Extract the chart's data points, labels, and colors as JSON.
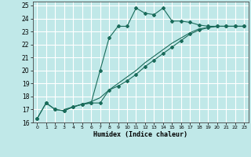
{
  "xlabel": "Humidex (Indice chaleur)",
  "bg_color": "#c0e8e8",
  "grid_color": "#ffffff",
  "line_color": "#1a6b5a",
  "xlim": [
    -0.5,
    23.5
  ],
  "ylim": [
    16,
    25.3
  ],
  "xticks": [
    0,
    1,
    2,
    3,
    4,
    5,
    6,
    7,
    8,
    9,
    10,
    11,
    12,
    13,
    14,
    15,
    16,
    17,
    18,
    19,
    20,
    21,
    22,
    23
  ],
  "yticks": [
    16,
    17,
    18,
    19,
    20,
    21,
    22,
    23,
    24,
    25
  ],
  "series1_x": [
    0,
    1,
    2,
    3,
    4,
    5,
    6,
    7,
    8,
    9,
    10,
    11,
    12,
    13,
    14,
    15,
    16,
    17,
    18,
    19,
    20,
    21,
    22,
    23
  ],
  "series1_y": [
    16.3,
    17.5,
    17.0,
    16.9,
    17.2,
    17.4,
    17.5,
    17.5,
    18.5,
    18.8,
    19.2,
    19.7,
    20.3,
    20.8,
    21.3,
    21.8,
    22.3,
    22.8,
    23.1,
    23.3,
    23.4,
    23.4,
    23.4,
    23.4
  ],
  "series2_x": [
    0,
    1,
    2,
    3,
    4,
    5,
    6,
    7,
    8,
    9,
    10,
    11,
    12,
    13,
    14,
    15,
    16,
    17,
    18,
    19,
    20,
    21,
    22,
    23
  ],
  "series2_y": [
    16.3,
    17.5,
    17.0,
    16.9,
    17.2,
    17.4,
    17.5,
    20.0,
    22.5,
    23.4,
    23.4,
    24.8,
    24.4,
    24.3,
    24.8,
    23.8,
    23.8,
    23.7,
    23.5,
    23.4,
    23.4,
    23.4,
    23.4,
    23.4
  ],
  "series3_x": [
    3,
    4,
    5,
    6,
    7,
    8,
    9,
    10,
    11,
    12,
    13,
    14,
    15,
    16,
    17,
    18,
    19,
    20,
    21,
    22,
    23
  ],
  "series3_y": [
    17.0,
    17.2,
    17.4,
    17.6,
    17.9,
    18.5,
    19.0,
    19.5,
    20.0,
    20.6,
    21.1,
    21.6,
    22.1,
    22.5,
    22.9,
    23.2,
    23.3,
    23.4,
    23.4,
    23.4,
    23.4
  ]
}
